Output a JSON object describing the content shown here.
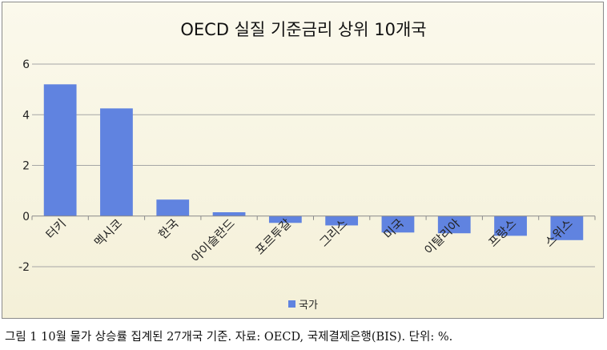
{
  "chart_data": {
    "type": "bar",
    "title": "OECD 실질 기준금리 상위 10개국",
    "categories": [
      "터키",
      "멕시코",
      "한국",
      "아이슬란드",
      "포르투갈",
      "그리스",
      "미국",
      "이탈리아",
      "프랑스",
      "스위스"
    ],
    "series": [
      {
        "name": "국가",
        "values": [
          5.2,
          4.25,
          0.65,
          0.15,
          -0.27,
          -0.37,
          -0.65,
          -0.68,
          -0.78,
          -0.95
        ]
      }
    ],
    "ylim": [
      -2,
      6
    ],
    "yticks": [
      -2,
      0,
      2,
      4,
      6
    ],
    "grid": true,
    "legend": "bottom",
    "bar_color": "#6083e0"
  },
  "caption": "그림 1 10월 물가 상승률 집계된 27개국 기준. 자료: OECD, 국제결제은행(BIS). 단위: %."
}
